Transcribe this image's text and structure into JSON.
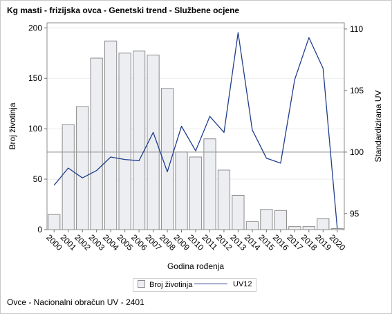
{
  "title": "Kg masti - frizijska ovca - Genetski trend - Službene ocjene",
  "footnote": "Ovce - Nacionalni obračun UV - 2401",
  "colors": {
    "bar_fill": "#eceef2",
    "bar_stroke": "#8c8c8c",
    "line": "#1f3d8c",
    "reference_line": "#a0a0a0",
    "grid": "#ebebeb"
  },
  "chart_data": {
    "type": "bar",
    "xlabel": "Godina rođenja",
    "ylabel": "Broj životinja",
    "y2label": "Standardizirana UV",
    "categories": [
      "2000",
      "2001",
      "2002",
      "2003",
      "2004",
      "2005",
      "2006",
      "2007",
      "2008",
      "2009",
      "2010",
      "2011",
      "2012",
      "2013",
      "2014",
      "2015",
      "2016",
      "2017",
      "2018",
      "2019",
      "2020"
    ],
    "series": [
      {
        "name": "Broj životinja",
        "type": "bar",
        "axis": "left",
        "values": [
          15,
          104,
          122,
          170,
          187,
          175,
          177,
          173,
          140,
          77,
          72,
          90,
          59,
          34,
          8,
          20,
          19,
          3,
          3,
          11,
          1
        ]
      },
      {
        "name": "UV12",
        "type": "line",
        "axis": "right",
        "values": [
          97.3,
          98.7,
          97.9,
          98.5,
          99.6,
          99.4,
          99.3,
          101.6,
          98.4,
          102.1,
          100.1,
          102.9,
          101.6,
          109.7,
          101.8,
          99.5,
          99.1,
          105.9,
          109.3,
          106.8,
          93.8
        ]
      }
    ],
    "ylim": [
      0,
      205
    ],
    "yticks": [
      0,
      50,
      100,
      150,
      200
    ],
    "y2lim": [
      93.7,
      110.5
    ],
    "y2ticks": [
      95,
      100,
      105,
      110
    ],
    "reference_line": {
      "axis": "right",
      "value": 100
    },
    "grid": true,
    "legend": {
      "position": "bottom"
    }
  }
}
